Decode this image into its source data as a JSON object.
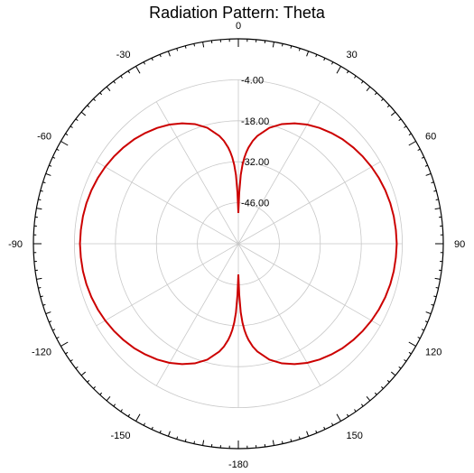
{
  "chart_data": {
    "type": "polar",
    "title": "Radiation Pattern: Theta",
    "angle_unit": "deg",
    "angle_zero": "top",
    "angle_direction": "clockwise",
    "angle_ticks": [
      0,
      30,
      60,
      90,
      120,
      150,
      -180,
      -150,
      -120,
      -90,
      -60,
      -30
    ],
    "angle_tick_labels": [
      "0",
      "30",
      "60",
      "90",
      "120",
      "150",
      "-180",
      "-150",
      "-120",
      "-90",
      "-60",
      "-30"
    ],
    "radial_tick_labels": [
      "-4.00",
      "-18.00",
      "-32.00",
      "-46.00"
    ],
    "radial_ticks": [
      -4,
      -18,
      -32,
      -46
    ],
    "radial_range": [
      -60,
      10
    ],
    "grid": true,
    "series": [
      {
        "color": "#cc0000",
        "theta": [
          0,
          1,
          2,
          3,
          4,
          5,
          6,
          8,
          10,
          15,
          20,
          25,
          30,
          35,
          40,
          45,
          50,
          55,
          60,
          65,
          70,
          75,
          80,
          85,
          90,
          95,
          100,
          105,
          110,
          115,
          120,
          125,
          130,
          135,
          140,
          145,
          150,
          155,
          160,
          165,
          170,
          172,
          174,
          175,
          176,
          177,
          178,
          179,
          180
        ],
        "r": [
          -49.5,
          -42.5,
          -36.5,
          -33.0,
          -30.5,
          -28.6,
          -27.0,
          -24.5,
          -22.6,
          -19.0,
          -16.5,
          -14.6,
          -13.0,
          -11.7,
          -10.6,
          -9.6,
          -8.8,
          -8.1,
          -7.5,
          -7.0,
          -6.6,
          -6.3,
          -6.1,
          -6.0,
          -5.9,
          -6.0,
          -6.1,
          -6.3,
          -6.6,
          -7.0,
          -7.5,
          -8.1,
          -8.8,
          -9.6,
          -10.6,
          -11.7,
          -13.0,
          -14.6,
          -16.5,
          -19.0,
          -22.6,
          -24.5,
          -27.0,
          -28.6,
          -30.5,
          -33.0,
          -36.5,
          -42.5,
          -49.5
        ]
      }
    ]
  }
}
